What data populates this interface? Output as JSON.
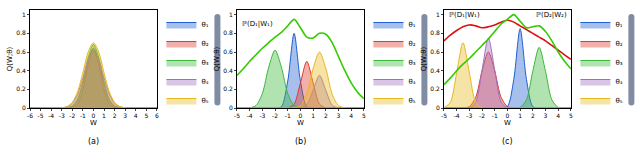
{
  "chart_data": [
    {
      "type": "area",
      "title": "(a)",
      "x_label": "W",
      "y_label": "Q(W;θ)",
      "x": [
        -6,
        -5.5,
        -5,
        -4.5,
        -4,
        -3.5,
        -3,
        -2.5,
        -2,
        -1.5,
        -1,
        -0.5,
        0,
        0.5,
        1,
        1.5,
        2,
        2.5,
        3,
        3.5,
        4,
        4.5,
        5,
        5.5,
        6
      ],
      "xlim": [
        -6,
        6
      ],
      "xticks": [
        -6,
        -5,
        -4,
        -3,
        -2,
        -1,
        0,
        1,
        2,
        3,
        4,
        5,
        6
      ],
      "ylim": [
        0,
        1.05
      ],
      "yticks": [
        0,
        0.2,
        0.4,
        0.6,
        0.8,
        1
      ],
      "grid": false,
      "legend": "right",
      "series": [
        {
          "name": "θ₁",
          "color": "#2060d0",
          "values": [
            0,
            0,
            0,
            0,
            0,
            0,
            0,
            0.003,
            0.018,
            0.086,
            0.262,
            0.512,
            0.64,
            0.512,
            0.262,
            0.086,
            0.018,
            0.003,
            0,
            0,
            0,
            0,
            0,
            0,
            0
          ]
        },
        {
          "name": "θ₂",
          "color": "#e03a2a",
          "values": [
            0,
            0,
            0,
            0,
            0,
            0,
            0,
            0,
            0.006,
            0.043,
            0.19,
            0.461,
            0.62,
            0.461,
            0.19,
            0.043,
            0.006,
            0,
            0,
            0,
            0,
            0,
            0,
            0,
            0
          ]
        },
        {
          "name": "θ₃",
          "color": "#3cb83c",
          "values": [
            0,
            0,
            0,
            0,
            0,
            0,
            0,
            0.003,
            0.019,
            0.092,
            0.279,
            0.544,
            0.68,
            0.544,
            0.279,
            0.092,
            0.019,
            0.003,
            0,
            0,
            0,
            0,
            0,
            0,
            0
          ]
        },
        {
          "name": "θ₄",
          "color": "#a070c0",
          "values": [
            0,
            0,
            0,
            0,
            0,
            0,
            0.002,
            0.013,
            0.051,
            0.15,
            0.324,
            0.514,
            0.6,
            0.514,
            0.324,
            0.15,
            0.051,
            0.013,
            0.002,
            0,
            0,
            0,
            0,
            0,
            0
          ]
        },
        {
          "name": "θ₅",
          "color": "#e8b820",
          "values": [
            0,
            0,
            0,
            0,
            0,
            0,
            0.003,
            0.015,
            0.06,
            0.175,
            0.378,
            0.6,
            0.7,
            0.6,
            0.378,
            0.175,
            0.06,
            0.015,
            0.003,
            0,
            0,
            0,
            0,
            0,
            0
          ]
        }
      ]
    },
    {
      "type": "area",
      "title": "(b)",
      "x_label": "W",
      "y_label": "Q(W;θ)",
      "x": [
        -5,
        -4.5,
        -4,
        -3.5,
        -3,
        -2.5,
        -2,
        -1.5,
        -1,
        -0.5,
        0,
        0.5,
        1,
        1.5,
        2,
        2.5,
        3,
        3.5,
        4,
        4.5,
        5
      ],
      "xlim": [
        -5,
        5
      ],
      "xticks": [
        -5,
        -4,
        -3,
        -2,
        -1,
        0,
        1,
        2,
        3,
        4,
        5
      ],
      "ylim": [
        0,
        1.05
      ],
      "yticks": [
        0,
        0.2,
        0.4,
        0.6,
        0.8,
        1
      ],
      "grid": false,
      "legend": "right",
      "series": [
        {
          "name": "θ₁",
          "color": "#2060d0",
          "values": [
            0,
            0,
            0,
            0,
            0,
            0,
            0,
            0.014,
            0.288,
            0.8,
            0.288,
            0.014,
            0,
            0,
            0,
            0,
            0,
            0,
            0,
            0,
            0
          ]
        },
        {
          "name": "θ₂",
          "color": "#e03a2a",
          "values": [
            0,
            0,
            0,
            0,
            0,
            0,
            0,
            0,
            0.002,
            0.042,
            0.27,
            0.5,
            0.27,
            0.042,
            0.002,
            0,
            0,
            0,
            0,
            0,
            0
          ]
        },
        {
          "name": "θ₃",
          "color": "#3cb83c",
          "values": [
            0,
            0,
            0.002,
            0.027,
            0.155,
            0.438,
            0.62,
            0.438,
            0.155,
            0.027,
            0.002,
            0,
            0,
            0,
            0,
            0,
            0,
            0,
            0,
            0,
            0
          ]
        },
        {
          "name": "θ₄",
          "color": "#a070c0",
          "values": [
            0,
            0,
            0,
            0,
            0,
            0,
            0,
            0,
            0,
            0,
            0.001,
            0.03,
            0.189,
            0.35,
            0.189,
            0.03,
            0.001,
            0,
            0,
            0,
            0
          ]
        },
        {
          "name": "θ₅",
          "color": "#e8b820",
          "values": [
            0,
            0,
            0,
            0,
            0,
            0,
            0,
            0,
            0,
            0.002,
            0.026,
            0.149,
            0.424,
            0.6,
            0.424,
            0.149,
            0.026,
            0.002,
            0,
            0,
            0
          ]
        },
        {
          "type": "line",
          "color": "#33cc00",
          "values": [
            0.35,
            0.42,
            0.5,
            0.57,
            0.64,
            0.7,
            0.76,
            0.81,
            0.88,
            0.95,
            0.86,
            0.76,
            0.75,
            0.8,
            0.79,
            0.7,
            0.55,
            0.4,
            0.27,
            0.17,
            0.1
          ]
        }
      ],
      "annotations": [
        {
          "text": "ℙ(D₁|W₁)",
          "x": -3.4,
          "y": 0.9
        }
      ]
    },
    {
      "type": "area",
      "title": "(c)",
      "x_label": "W",
      "y_label": "Q(W;θ)",
      "x": [
        -5,
        -4.5,
        -4,
        -3.5,
        -3,
        -2.5,
        -2,
        -1.5,
        -1,
        -0.5,
        0,
        0.5,
        1,
        1.5,
        2,
        2.5,
        3,
        3.5,
        4,
        4.5,
        5
      ],
      "xlim": [
        -5,
        5
      ],
      "xticks": [
        -5,
        -4,
        -3,
        -2,
        -1,
        0,
        1,
        2,
        3,
        4,
        5
      ],
      "ylim": [
        0,
        1.05
      ],
      "yticks": [
        0,
        0.2,
        0.4,
        0.6,
        0.8,
        1
      ],
      "grid": false,
      "legend": "right",
      "series": [
        {
          "name": "θ₁",
          "color": "#2060d0",
          "values": [
            0,
            0,
            0,
            0,
            0,
            0,
            0,
            0,
            0,
            0,
            0.015,
            0.306,
            0.85,
            0.306,
            0.015,
            0,
            0,
            0,
            0,
            0,
            0
          ]
        },
        {
          "name": "θ₂",
          "color": "#e03a2a",
          "values": [
            0,
            0,
            0,
            0.001,
            0.015,
            0.114,
            0.396,
            0.6,
            0.396,
            0.114,
            0.015,
            0.001,
            0,
            0,
            0,
            0,
            0,
            0,
            0,
            0,
            0
          ]
        },
        {
          "name": "θ₃",
          "color": "#3cb83c",
          "values": [
            0,
            0,
            0,
            0,
            0,
            0,
            0,
            0,
            0,
            0,
            0,
            0,
            0.007,
            0.088,
            0.394,
            0.65,
            0.394,
            0.088,
            0.007,
            0,
            0
          ]
        },
        {
          "name": "θ₄",
          "color": "#a070c0",
          "values": [
            0,
            0,
            0,
            0,
            0.003,
            0.063,
            0.405,
            0.75,
            0.405,
            0.063,
            0.003,
            0,
            0,
            0,
            0,
            0,
            0,
            0,
            0,
            0,
            0
          ]
        },
        {
          "name": "θ₅",
          "color": "#e8b820",
          "values": [
            0.003,
            0.059,
            0.378,
            0.7,
            0.378,
            0.059,
            0.003,
            0,
            0,
            0,
            0,
            0,
            0,
            0,
            0,
            0,
            0,
            0,
            0,
            0,
            0
          ]
        },
        {
          "type": "line",
          "color": "#dd1111",
          "values": [
            0.72,
            0.78,
            0.83,
            0.87,
            0.89,
            0.88,
            0.86,
            0.87,
            0.89,
            0.92,
            0.94,
            0.92,
            0.88,
            0.84,
            0.8,
            0.76,
            0.72,
            0.67,
            0.62,
            0.57,
            0.52
          ]
        },
        {
          "type": "line",
          "color": "#33cc00",
          "values": [
            0.25,
            0.32,
            0.4,
            0.47,
            0.53,
            0.6,
            0.67,
            0.74,
            0.82,
            0.9,
            0.95,
            1.0,
            0.93,
            0.86,
            0.87,
            0.88,
            0.82,
            0.72,
            0.6,
            0.5,
            0.42
          ]
        }
      ],
      "annotations": [
        {
          "text": "ℙ(D₁|W₁)",
          "x": -3.4,
          "y": 1.0
        },
        {
          "text": "ℙ(D₂|W₂)",
          "x": 3.5,
          "y": 1.0
        }
      ]
    }
  ]
}
